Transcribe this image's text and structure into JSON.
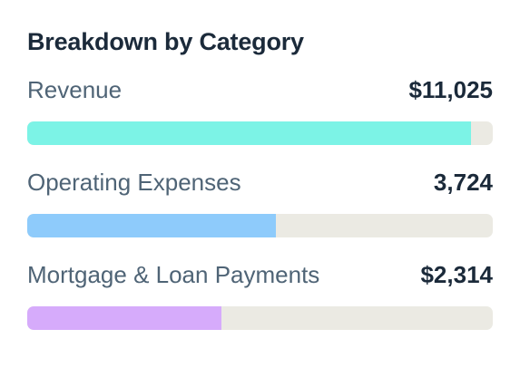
{
  "card": {
    "title": "Breakdown by Category"
  },
  "categories": [
    {
      "label": "Revenue",
      "value": "$11,025",
      "fraction": 0.954,
      "color": "#7cf3e6"
    },
    {
      "label": "Operating Expenses",
      "value": "3,724",
      "fraction": 0.535,
      "color": "#8ecbfb"
    },
    {
      "label": "Mortgage & Loan Payments",
      "value": "$2,314",
      "fraction": 0.417,
      "color": "#d6abfb"
    }
  ]
}
